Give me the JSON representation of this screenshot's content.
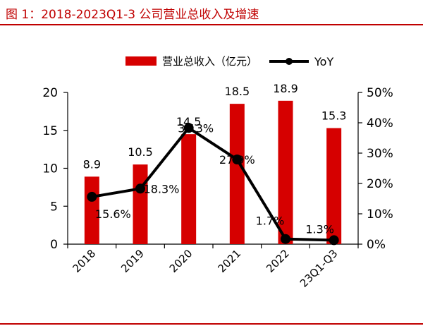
{
  "figure": {
    "title": "图 1：2018-2023Q1-3 公司营业总收入及增速"
  },
  "colors": {
    "bar": "#d60000",
    "line": "#000000",
    "accent": "#c00000"
  },
  "chart_data": {
    "type": "bar",
    "categories": [
      "2018",
      "2019",
      "2020",
      "2021",
      "2022",
      "23Q1-Q3"
    ],
    "series": [
      {
        "name": "营业总收入（亿元）",
        "type": "bar",
        "axis": "left",
        "values": [
          8.9,
          10.5,
          14.5,
          18.5,
          18.9,
          15.3
        ],
        "labels": [
          "8.9",
          "10.5",
          "14.5",
          "18.5",
          "18.9",
          "15.3"
        ]
      },
      {
        "name": "YoY",
        "type": "line",
        "axis": "right",
        "values": [
          15.6,
          18.3,
          38.3,
          27.9,
          1.7,
          1.3
        ],
        "labels": [
          "15.6%",
          "18.3%",
          "38.3%",
          "27.9%",
          "1.7%",
          "1.3%"
        ]
      }
    ],
    "y_left": {
      "lim": [
        0,
        20
      ],
      "ticks": [
        "0",
        "5",
        "10",
        "15",
        "20"
      ]
    },
    "y_right": {
      "lim": [
        0,
        50
      ],
      "ticks": [
        "0%",
        "10%",
        "20%",
        "30%",
        "40%",
        "50%"
      ]
    },
    "legend_position": "top",
    "grid": false
  }
}
